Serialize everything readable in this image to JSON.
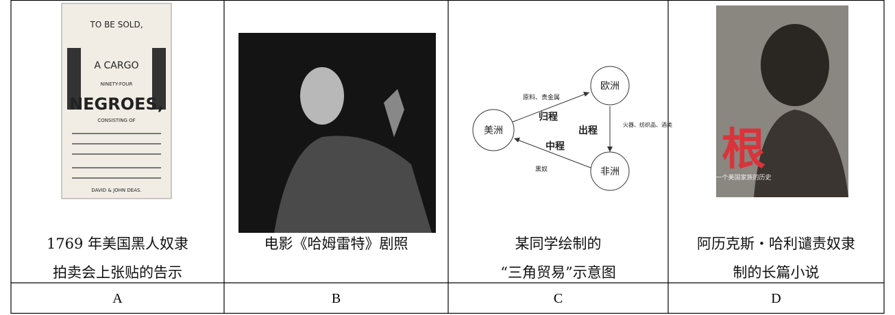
{
  "table": {
    "cells": [
      {
        "caption": [
          "1769 年美国黑人奴隶",
          "拍卖会上张贴的告示"
        ],
        "label": "A"
      },
      {
        "caption": [
          "电影《哈姆雷特》剧照"
        ],
        "label": "B"
      },
      {
        "caption": [
          "某同学绘制的",
          "“三角贸易”示意图"
        ],
        "label": "C"
      },
      {
        "caption": [
          "阿历克斯・哈利谴责奴隶",
          "制的长篇小说"
        ],
        "label": "D"
      }
    ]
  },
  "poster": {
    "lines": [
      "TO BE SOLD,",
      "A CARGO",
      "NINETY-FOUR",
      "NEGROES,",
      "CONSISTING OF",
      "DAVID & JOHN DEAS."
    ]
  },
  "diagram": {
    "nodes": [
      "美洲",
      "欧洲",
      "非洲"
    ],
    "routes": [
      "归程",
      "出程",
      "中程"
    ],
    "goods": [
      "原料、贵金属",
      "火器、纺织品、酒类",
      "黑奴"
    ]
  },
  "cover": {
    "title": "根",
    "subtitle": "一个美国家族的历史"
  }
}
